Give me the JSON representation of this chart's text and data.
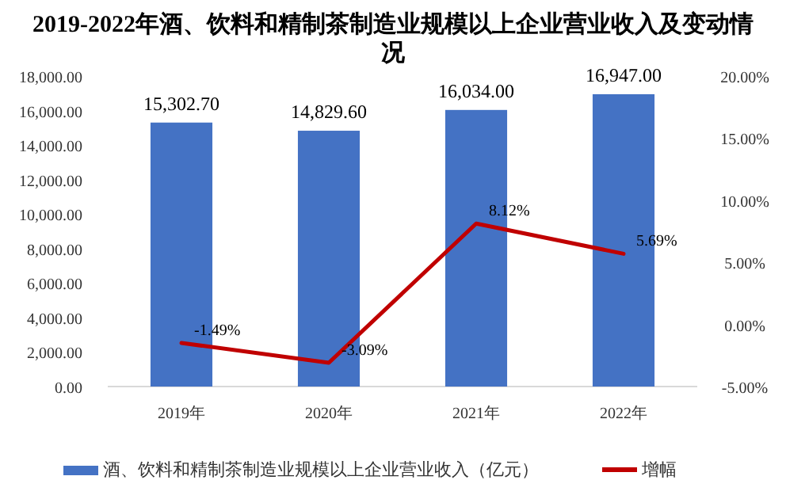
{
  "chart_data": {
    "type": "bar",
    "title": "2019-2022年酒、饮料和精制茶制造业规模以上企业营业收入及变动情况",
    "categories": [
      "2019年",
      "2020年",
      "2021年",
      "2022年"
    ],
    "series": [
      {
        "name": "酒、饮料和精制茶制造业规模以上企业营业收入（亿元）",
        "color": "#4472c4",
        "values": [
          15302.7,
          14829.6,
          16034.0,
          16947.0
        ],
        "value_labels": [
          "15,302.70",
          "14,829.60",
          "16,034.00",
          "16,947.00"
        ]
      },
      {
        "name": "增幅",
        "type": "line",
        "axis": "y2",
        "color": "#c00000",
        "values": [
          -1.49,
          -3.09,
          8.12,
          5.69
        ],
        "value_labels": [
          "-1.49%",
          "-3.09%",
          "8.12%",
          "5.69%"
        ]
      }
    ],
    "ylim": [
      0,
      18000
    ],
    "yticks": [
      {
        "value": 0,
        "label": "0.00"
      },
      {
        "value": 2000,
        "label": "2,000.00"
      },
      {
        "value": 4000,
        "label": "4,000.00"
      },
      {
        "value": 6000,
        "label": "6,000.00"
      },
      {
        "value": 8000,
        "label": "8,000.00"
      },
      {
        "value": 10000,
        "label": "10,000.00"
      },
      {
        "value": 12000,
        "label": "12,000.00"
      },
      {
        "value": 14000,
        "label": "14,000.00"
      },
      {
        "value": 16000,
        "label": "16,000.00"
      },
      {
        "value": 18000,
        "label": "18,000.00"
      }
    ],
    "y2lim": [
      -5,
      20
    ],
    "y2ticks": [
      {
        "value": -5,
        "label": "-5.00%"
      },
      {
        "value": 0,
        "label": "0.00%"
      },
      {
        "value": 5,
        "label": "5.00%"
      },
      {
        "value": 10,
        "label": "10.00%"
      },
      {
        "value": 15,
        "label": "15.00%"
      },
      {
        "value": 20,
        "label": "20.00%"
      }
    ],
    "legend": "bottom",
    "grid": false,
    "marker": "none"
  }
}
